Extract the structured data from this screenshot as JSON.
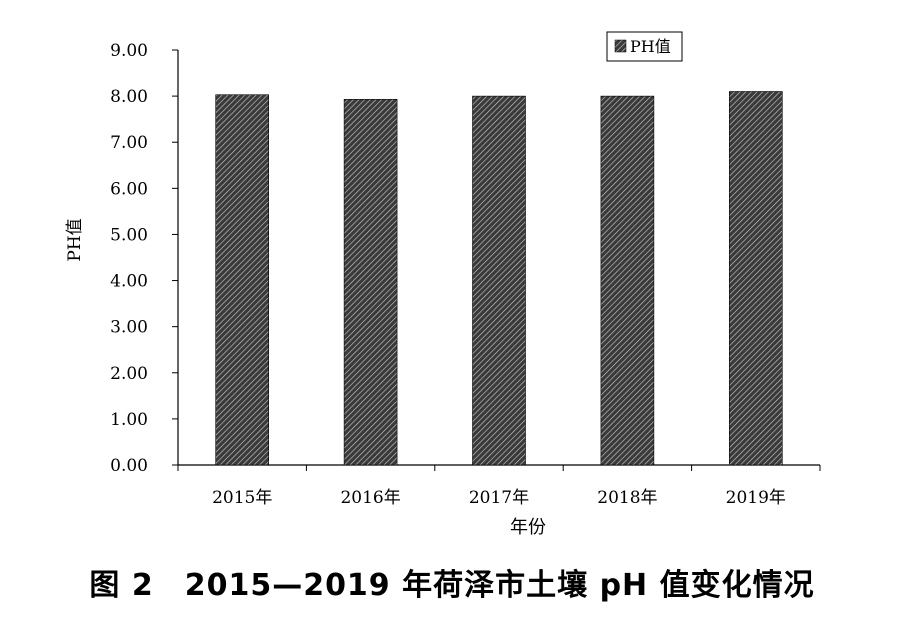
{
  "chart_data": {
    "type": "bar",
    "categories": [
      "2015年",
      "2016年",
      "2017年",
      "2018年",
      "2019年"
    ],
    "series": [
      {
        "name": "PH值",
        "values": [
          8.03,
          7.93,
          8.0,
          8.0,
          8.1
        ]
      }
    ],
    "ylabel": "PH值",
    "xlabel": "年份",
    "ylim": [
      0,
      9
    ],
    "yticks": [
      "0.00",
      "1.00",
      "2.00",
      "3.00",
      "4.00",
      "5.00",
      "6.00",
      "7.00",
      "8.00",
      "9.00"
    ],
    "grid": false,
    "legend_position": "top-right"
  },
  "caption": "图 2　2015—2019 年荷泽市土壤 pH 值变化情况",
  "colors": {
    "bar_fill": "#333333",
    "bar_hatch": "#d9d9d9",
    "axis": "#000000"
  }
}
